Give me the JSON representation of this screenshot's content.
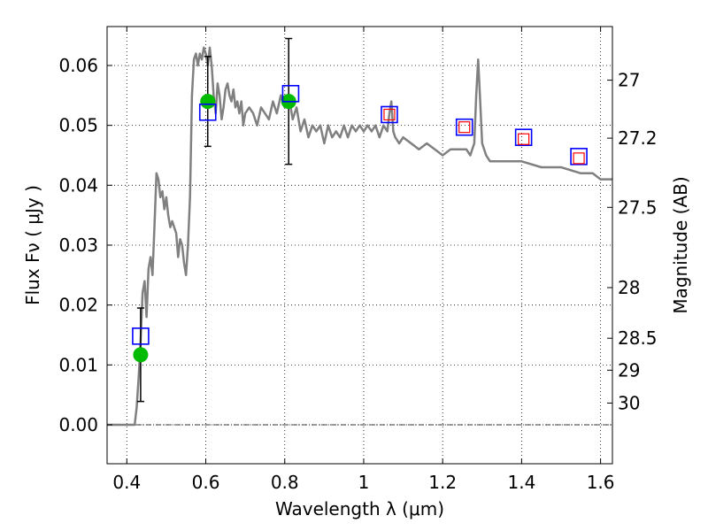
{
  "chart_data": {
    "type": "scatter",
    "xlabel": "Wavelength  λ (μm)",
    "ylabel": "Flux  Fν  ( μJy )",
    "ylabel_right": "Magnitude (AB)",
    "xlim": [
      0.35,
      1.63
    ],
    "ylim": [
      -0.0065,
      0.0665
    ],
    "x_ticks": [
      {
        "value": 0.4,
        "label": "0.4"
      },
      {
        "value": 0.6,
        "label": "0.6"
      },
      {
        "value": 0.8,
        "label": "0.8"
      },
      {
        "value": 1.0,
        "label": "1"
      },
      {
        "value": 1.2,
        "label": "1.2"
      },
      {
        "value": 1.4,
        "label": "1.4"
      },
      {
        "value": 1.6,
        "label": "1.6"
      }
    ],
    "y_ticks": [
      {
        "value": 0.0,
        "label": "0.00"
      },
      {
        "value": 0.01,
        "label": "0.01"
      },
      {
        "value": 0.02,
        "label": "0.02"
      },
      {
        "value": 0.03,
        "label": "0.03"
      },
      {
        "value": 0.04,
        "label": "0.04"
      },
      {
        "value": 0.05,
        "label": "0.05"
      },
      {
        "value": 0.06,
        "label": "0.06"
      }
    ],
    "right_ticks": [
      {
        "value": 27,
        "label": "27"
      },
      {
        "value": 27.2,
        "label": "27.2"
      },
      {
        "value": 27.5,
        "label": "27.5"
      },
      {
        "value": 28,
        "label": "28"
      },
      {
        "value": 28.5,
        "label": "28.5"
      },
      {
        "value": 29,
        "label": "29"
      },
      {
        "value": 30,
        "label": "30"
      }
    ],
    "grid": true,
    "zero_line": true,
    "series": [
      {
        "kind": "line",
        "color": "#808080",
        "x": [
          0.35,
          0.39,
          0.41,
          0.42,
          0.425,
          0.43,
          0.435,
          0.44,
          0.445,
          0.45,
          0.455,
          0.46,
          0.465,
          0.47,
          0.475,
          0.48,
          0.485,
          0.49,
          0.495,
          0.5,
          0.505,
          0.51,
          0.515,
          0.52,
          0.525,
          0.53,
          0.535,
          0.54,
          0.545,
          0.55,
          0.555,
          0.56,
          0.565,
          0.57,
          0.575,
          0.58,
          0.585,
          0.59,
          0.595,
          0.6,
          0.605,
          0.61,
          0.615,
          0.62,
          0.625,
          0.63,
          0.635,
          0.64,
          0.645,
          0.65,
          0.655,
          0.66,
          0.665,
          0.67,
          0.675,
          0.68,
          0.685,
          0.69,
          0.695,
          0.7,
          0.71,
          0.72,
          0.73,
          0.74,
          0.75,
          0.76,
          0.77,
          0.78,
          0.79,
          0.8,
          0.81,
          0.82,
          0.83,
          0.84,
          0.85,
          0.86,
          0.87,
          0.88,
          0.89,
          0.9,
          0.91,
          0.92,
          0.93,
          0.94,
          0.95,
          0.96,
          0.97,
          0.98,
          0.99,
          1.0,
          1.01,
          1.02,
          1.03,
          1.04,
          1.05,
          1.06,
          1.065,
          1.07,
          1.075,
          1.08,
          1.09,
          1.1,
          1.12,
          1.14,
          1.16,
          1.18,
          1.2,
          1.22,
          1.24,
          1.26,
          1.27,
          1.275,
          1.28,
          1.285,
          1.29,
          1.295,
          1.3,
          1.31,
          1.32,
          1.35,
          1.4,
          1.45,
          1.5,
          1.55,
          1.58,
          1.6,
          1.63
        ],
        "y": [
          0.0,
          0.0,
          0.0,
          0.0,
          0.003,
          0.008,
          0.014,
          0.022,
          0.024,
          0.018,
          0.026,
          0.028,
          0.025,
          0.033,
          0.042,
          0.041,
          0.038,
          0.039,
          0.036,
          0.038,
          0.035,
          0.033,
          0.034,
          0.033,
          0.032,
          0.028,
          0.031,
          0.03,
          0.027,
          0.025,
          0.03,
          0.038,
          0.055,
          0.061,
          0.062,
          0.06,
          0.062,
          0.061,
          0.063,
          0.062,
          0.06,
          0.063,
          0.06,
          0.055,
          0.052,
          0.057,
          0.055,
          0.051,
          0.053,
          0.056,
          0.057,
          0.055,
          0.054,
          0.056,
          0.053,
          0.054,
          0.052,
          0.054,
          0.05,
          0.052,
          0.053,
          0.052,
          0.05,
          0.053,
          0.052,
          0.051,
          0.054,
          0.052,
          0.055,
          0.053,
          0.055,
          0.051,
          0.053,
          0.049,
          0.051,
          0.048,
          0.05,
          0.049,
          0.05,
          0.047,
          0.05,
          0.048,
          0.049,
          0.048,
          0.05,
          0.048,
          0.05,
          0.049,
          0.05,
          0.049,
          0.05,
          0.049,
          0.05,
          0.048,
          0.05,
          0.049,
          0.052,
          0.054,
          0.049,
          0.048,
          0.047,
          0.048,
          0.047,
          0.046,
          0.047,
          0.046,
          0.045,
          0.046,
          0.046,
          0.046,
          0.045,
          0.046,
          0.047,
          0.055,
          0.061,
          0.054,
          0.047,
          0.045,
          0.044,
          0.044,
          0.044,
          0.043,
          0.043,
          0.042,
          0.042,
          0.041,
          0.041
        ]
      },
      {
        "kind": "points",
        "marker": "circle",
        "color": "#00bb00",
        "x": [
          0.435,
          0.605,
          0.81
        ],
        "y": [
          0.0117,
          0.054,
          0.054
        ],
        "yerr": [
          0.0078,
          0.0075,
          0.0105
        ]
      },
      {
        "kind": "points",
        "marker": "square-open",
        "color": "#0000ff",
        "x": [
          0.435,
          0.605,
          0.815,
          1.065,
          1.255,
          1.405,
          1.545
        ],
        "y": [
          0.0148,
          0.0522,
          0.0553,
          0.0518,
          0.0497,
          0.048,
          0.0448
        ]
      },
      {
        "kind": "points",
        "marker": "square-open-small",
        "color": "#ff0000",
        "x": [
          1.065,
          1.255,
          1.405,
          1.545
        ],
        "y": [
          0.0518,
          0.0497,
          0.0477,
          0.0445
        ]
      }
    ]
  }
}
